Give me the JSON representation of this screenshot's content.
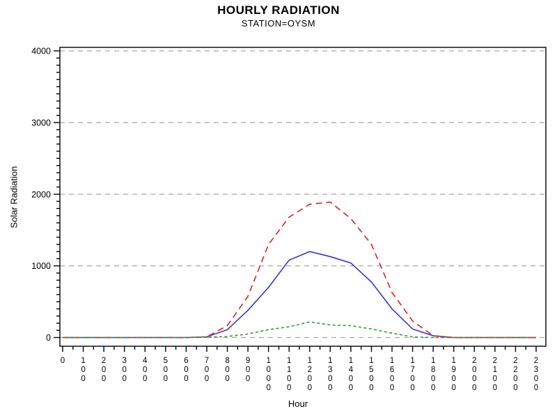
{
  "title": "HOURLY RADIATION",
  "subtitle": "STATION=OYSM",
  "chart_data": {
    "type": "line",
    "title": "HOURLY RADIATION",
    "subtitle": "STATION=OYSM",
    "xlabel": "Hour",
    "ylabel": "Solar Radiation",
    "x": [
      0,
      100,
      200,
      300,
      400,
      500,
      600,
      700,
      800,
      900,
      1000,
      1100,
      1200,
      1300,
      1400,
      1500,
      1600,
      1700,
      1800,
      1900,
      2000,
      2100,
      2200,
      2300
    ],
    "x_tick_labels": [
      "0",
      "100",
      "200",
      "300",
      "400",
      "500",
      "600",
      "700",
      "800",
      "900",
      "1000",
      "1100",
      "1200",
      "1300",
      "1400",
      "1500",
      "1600",
      "1700",
      "1800",
      "1900",
      "2000",
      "2100",
      "2200",
      "2300"
    ],
    "y_ticks": [
      0,
      1000,
      2000,
      3000,
      4000
    ],
    "y_tick_labels": [
      "0",
      "1000",
      "2000",
      "3000",
      "4000"
    ],
    "ylim": [
      0,
      4000
    ],
    "y_minor_step": 100,
    "grid": "horizontal dashed gray at major y ticks",
    "legend": "none",
    "colors": {
      "grid": "#a6a6a6",
      "axis": "#000000",
      "series_blue": "#3434d0",
      "series_red": "#e02020",
      "series_green": "#2e9b2e"
    },
    "series": [
      {
        "name": "blue-solid",
        "color": "#3434d0",
        "style": "solid",
        "values": [
          0,
          0,
          0,
          0,
          0,
          0,
          0,
          10,
          110,
          380,
          700,
          1080,
          1200,
          1130,
          1040,
          775,
          400,
          120,
          25,
          0,
          0,
          0,
          0,
          0
        ]
      },
      {
        "name": "red-dashed",
        "color": "#e02020",
        "style": "dashed",
        "values": [
          0,
          0,
          0,
          0,
          0,
          0,
          0,
          10,
          165,
          575,
          1300,
          1680,
          1860,
          1890,
          1660,
          1300,
          630,
          230,
          25,
          0,
          0,
          0,
          0,
          0
        ]
      },
      {
        "name": "green-short-dashed",
        "color": "#2e9b2e",
        "style": "short-dashed",
        "values": [
          0,
          0,
          0,
          0,
          0,
          0,
          0,
          5,
          15,
          50,
          110,
          150,
          220,
          175,
          165,
          120,
          60,
          10,
          0,
          0,
          0,
          0,
          0,
          0
        ]
      }
    ]
  }
}
